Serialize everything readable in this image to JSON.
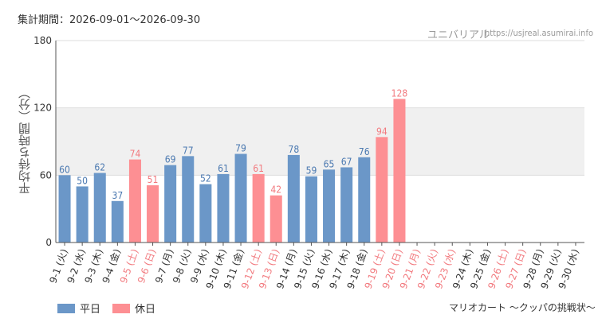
{
  "header": {
    "period_label": "集計期間：2026-09-01～2026-09-30",
    "site_name": "ユニバリアル",
    "site_url": "https://usjreal.asumirai.info"
  },
  "footer": {
    "attraction": "マリオカート ～クッパの挑戦状～"
  },
  "colors": {
    "weekday": "#6b97c8",
    "holiday": "#fd8f93",
    "weekday_label": "#4a78b0",
    "holiday_label": "#f27a7f",
    "band": "#f0f0f0",
    "axis": "#555555"
  },
  "chart_data": {
    "type": "bar",
    "title": "",
    "xlabel": "",
    "ylabel": "平均待ち時間（分）",
    "ylim": [
      0,
      180
    ],
    "yticks": [
      0,
      60,
      120,
      180
    ],
    "band_range": [
      60,
      120
    ],
    "legend": {
      "placement": "bottom-left",
      "entries": [
        {
          "name": "平日",
          "color": "#6b97c8"
        },
        {
          "name": "休日",
          "color": "#fd8f93"
        }
      ]
    },
    "categories": [
      "9-1 (火)",
      "9-2 (水)",
      "9-3 (木)",
      "9-4 (金)",
      "9-5 (土)",
      "9-6 (日)",
      "9-7 (月)",
      "9-8 (火)",
      "9-9 (水)",
      "9-10 (木)",
      "9-11 (金)",
      "9-12 (土)",
      "9-13 (日)",
      "9-14 (月)",
      "9-15 (火)",
      "9-16 (水)",
      "9-17 (木)",
      "9-18 (金)",
      "9-19 (土)",
      "9-20 (日)",
      "9-21 (月)",
      "9-22 (火)",
      "9-23 (水)",
      "9-24 (木)",
      "9-25 (金)",
      "9-26 (土)",
      "9-27 (日)",
      "9-28 (月)",
      "9-29 (火)",
      "9-30 (水)"
    ],
    "values": [
      60,
      50,
      62,
      37,
      74,
      51,
      69,
      77,
      52,
      61,
      79,
      61,
      42,
      78,
      59,
      65,
      67,
      76,
      94,
      128,
      null,
      null,
      null,
      null,
      null,
      null,
      null,
      null,
      null,
      null
    ],
    "day_type": [
      "weekday",
      "weekday",
      "weekday",
      "weekday",
      "holiday",
      "holiday",
      "weekday",
      "weekday",
      "weekday",
      "weekday",
      "weekday",
      "holiday",
      "holiday",
      "weekday",
      "weekday",
      "weekday",
      "weekday",
      "weekday",
      "holiday",
      "holiday",
      "holiday",
      "holiday",
      "holiday",
      "weekday",
      "weekday",
      "holiday",
      "holiday",
      "weekday",
      "weekday",
      "weekday"
    ]
  }
}
